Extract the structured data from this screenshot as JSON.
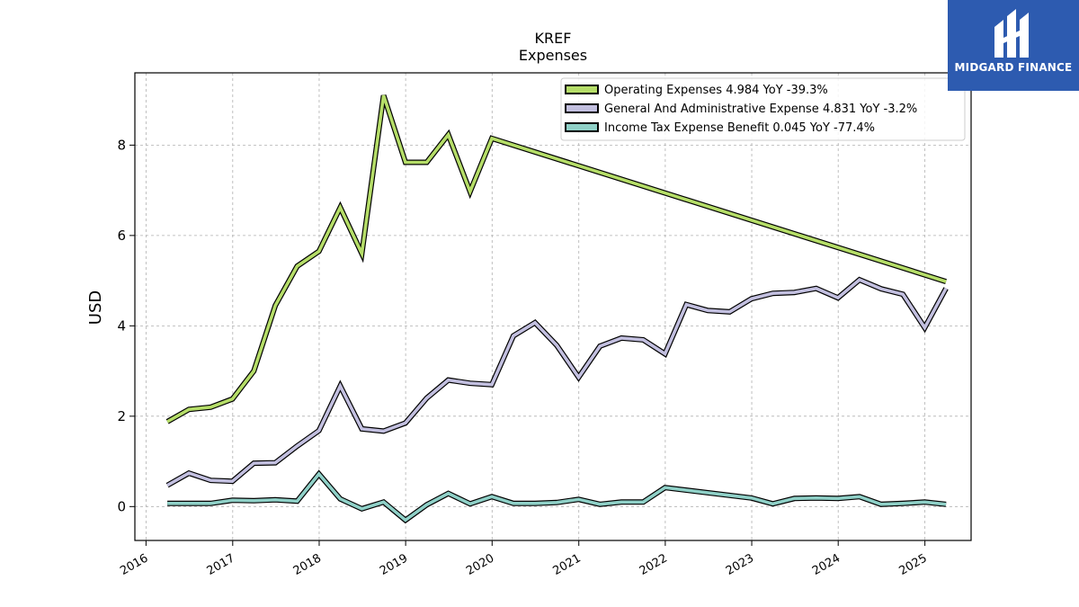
{
  "chart_data": {
    "type": "line",
    "title": "KREF",
    "subtitle": "Expenses",
    "ylabel": "USD",
    "xlabel": "",
    "xlim": [
      "2015-11-15",
      "2025-07-15"
    ],
    "ylim": [
      -0.75,
      9.6
    ],
    "yticks": [
      0,
      2,
      4,
      6,
      8
    ],
    "xticks": [
      "2016",
      "2017",
      "2018",
      "2019",
      "2020",
      "2021",
      "2022",
      "2023",
      "2024",
      "2025"
    ],
    "grid": true,
    "legend_position": "top-right",
    "series": [
      {
        "name": "Operating Expenses  4.984 YoY -39.3%",
        "color": "#b5dd68",
        "points": [
          [
            "2016-03-31",
            1.88
          ],
          [
            "2016-06-30",
            2.15
          ],
          [
            "2016-09-30",
            2.2
          ],
          [
            "2016-12-31",
            2.38
          ],
          [
            "2017-03-31",
            3.0
          ],
          [
            "2017-06-30",
            4.45
          ],
          [
            "2017-09-30",
            5.32
          ],
          [
            "2017-12-31",
            5.65
          ],
          [
            "2018-03-31",
            6.62
          ],
          [
            "2018-06-30",
            5.6
          ],
          [
            "2018-09-30",
            9.1
          ],
          [
            "2018-12-31",
            7.62
          ],
          [
            "2019-03-31",
            7.62
          ],
          [
            "2019-06-30",
            8.23
          ],
          [
            "2019-09-30",
            6.97
          ],
          [
            "2019-12-31",
            8.15
          ],
          [
            "2025-03-31",
            4.98
          ]
        ]
      },
      {
        "name": "General And Administrative Expense  4.831 YoY -3.2%",
        "color": "#c2bfdf",
        "points": [
          [
            "2016-03-31",
            0.47
          ],
          [
            "2016-06-30",
            0.74
          ],
          [
            "2016-09-30",
            0.58
          ],
          [
            "2016-12-31",
            0.56
          ],
          [
            "2017-03-31",
            0.96
          ],
          [
            "2017-06-30",
            0.97
          ],
          [
            "2017-09-30",
            1.34
          ],
          [
            "2017-12-31",
            1.68
          ],
          [
            "2018-03-31",
            2.67
          ],
          [
            "2018-06-30",
            1.72
          ],
          [
            "2018-09-30",
            1.67
          ],
          [
            "2018-12-31",
            1.85
          ],
          [
            "2019-03-31",
            2.4
          ],
          [
            "2019-06-30",
            2.8
          ],
          [
            "2019-09-30",
            2.73
          ],
          [
            "2019-12-31",
            2.7
          ],
          [
            "2020-03-31",
            3.78
          ],
          [
            "2020-06-30",
            4.07
          ],
          [
            "2020-09-30",
            3.57
          ],
          [
            "2020-12-31",
            2.86
          ],
          [
            "2021-03-31",
            3.55
          ],
          [
            "2021-06-30",
            3.73
          ],
          [
            "2021-09-30",
            3.69
          ],
          [
            "2021-12-31",
            3.38
          ],
          [
            "2022-03-31",
            4.47
          ],
          [
            "2022-06-30",
            4.34
          ],
          [
            "2022-09-30",
            4.31
          ],
          [
            "2022-12-31",
            4.6
          ],
          [
            "2023-03-31",
            4.72
          ],
          [
            "2023-06-30",
            4.74
          ],
          [
            "2023-09-30",
            4.83
          ],
          [
            "2023-12-31",
            4.62
          ],
          [
            "2024-03-31",
            5.02
          ],
          [
            "2024-06-30",
            4.82
          ],
          [
            "2024-09-30",
            4.7
          ],
          [
            "2024-12-31",
            3.96
          ],
          [
            "2025-03-31",
            4.83
          ]
        ]
      },
      {
        "name": "Income Tax Expense Benefit  0.045 YoY -77.4%",
        "color": "#8fd0c7",
        "points": [
          [
            "2016-03-31",
            0.07
          ],
          [
            "2016-06-30",
            0.07
          ],
          [
            "2016-09-30",
            0.07
          ],
          [
            "2016-12-31",
            0.14
          ],
          [
            "2017-03-31",
            0.13
          ],
          [
            "2017-06-30",
            0.15
          ],
          [
            "2017-09-30",
            0.12
          ],
          [
            "2017-12-31",
            0.72
          ],
          [
            "2018-03-31",
            0.17
          ],
          [
            "2018-06-30",
            -0.05
          ],
          [
            "2018-09-30",
            0.1
          ],
          [
            "2018-12-31",
            -0.3
          ],
          [
            "2019-03-31",
            0.04
          ],
          [
            "2019-06-30",
            0.29
          ],
          [
            "2019-09-30",
            0.06
          ],
          [
            "2019-12-31",
            0.22
          ],
          [
            "2020-03-31",
            0.07
          ],
          [
            "2020-06-30",
            0.07
          ],
          [
            "2020-09-30",
            0.09
          ],
          [
            "2020-12-31",
            0.16
          ],
          [
            "2021-03-31",
            0.05
          ],
          [
            "2021-06-30",
            0.1
          ],
          [
            "2021-09-30",
            0.1
          ],
          [
            "2021-12-31",
            0.42
          ],
          [
            "2022-12-31",
            0.19
          ],
          [
            "2023-03-31",
            0.06
          ],
          [
            "2023-06-30",
            0.18
          ],
          [
            "2023-09-30",
            0.19
          ],
          [
            "2023-12-31",
            0.18
          ],
          [
            "2024-03-31",
            0.22
          ],
          [
            "2024-06-30",
            0.05
          ],
          [
            "2024-09-30",
            0.07
          ],
          [
            "2024-12-31",
            0.1
          ],
          [
            "2025-03-31",
            0.05
          ]
        ]
      }
    ]
  },
  "logo": {
    "text": "MIDGARD FINANCE",
    "background": "#2d5bb0"
  }
}
